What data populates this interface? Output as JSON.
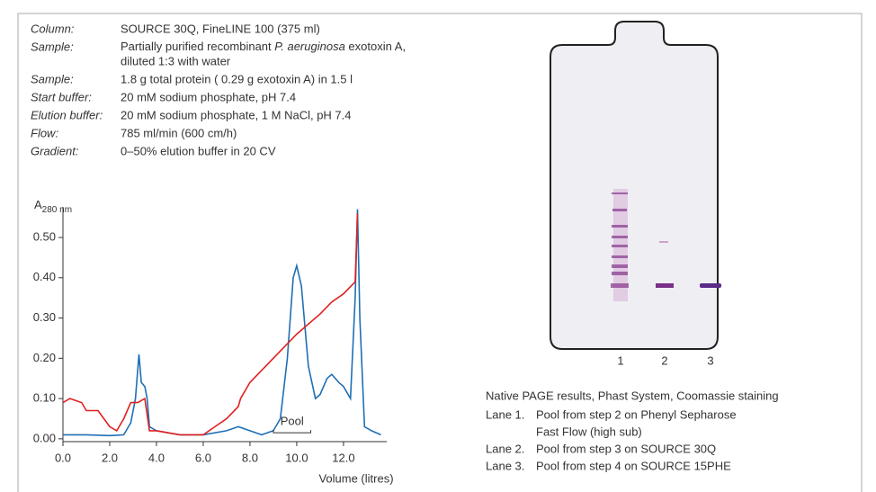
{
  "conditions": [
    {
      "label": "Column:",
      "value": [
        "SOURCE 30Q, FineLINE 100 (375 ml)"
      ]
    },
    {
      "label": "Sample:",
      "value": [
        "Partially purified recombinant ",
        "P. aeruginosa",
        " exotoxin A,",
        "diluted 1:3 with water"
      ]
    },
    {
      "label": "Sample:",
      "value": [
        "1.8 g total protein ( 0.29 g exotoxin A) in 1.5 l"
      ]
    },
    {
      "label": "Start buffer:",
      "value": [
        "20 mM sodium phosphate, pH 7.4"
      ]
    },
    {
      "label": "Elution buffer:",
      "value": [
        "20 mM sodium phosphate, 1 M NaCl, pH 7.4"
      ]
    },
    {
      "label": "Flow:",
      "value": [
        "785 ml/min (600 cm/h)"
      ]
    },
    {
      "label": "Gradient:",
      "value": [
        "0–50% elution buffer in 20 CV"
      ]
    }
  ],
  "chart_data": {
    "type": "line",
    "ylabel": "A",
    "ylabel_sub": "280 nm",
    "xlabel": "Volume (litres)",
    "xlim": [
      0,
      13.85
    ],
    "ylim": [
      -0.007,
      0.576
    ],
    "xticks": [
      {
        "value": 0,
        "label": "0.0"
      },
      {
        "value": 2,
        "label": "2.0"
      },
      {
        "value": 4,
        "label": "4.0"
      },
      {
        "value": 6,
        "label": "6.0"
      },
      {
        "value": 8,
        "label": "8.0"
      },
      {
        "value": 10,
        "label": "10.0"
      },
      {
        "value": 12,
        "label": "12.0"
      }
    ],
    "yticks": [
      {
        "value": 0,
        "label": "0.00"
      },
      {
        "value": 0.1,
        "label": "0.10"
      },
      {
        "value": 0.2,
        "label": "0.20"
      },
      {
        "value": 0.3,
        "label": "0.30"
      },
      {
        "value": 0.4,
        "label": "0.40"
      },
      {
        "value": 0.5,
        "label": "0.50"
      }
    ],
    "series": [
      {
        "color": "#1f6fb5",
        "x": [
          0,
          1.0,
          2.0,
          2.6,
          2.9,
          3.1,
          3.25,
          3.35,
          3.5,
          3.6,
          3.7,
          4.0,
          5.0,
          6.0,
          7.0,
          7.5,
          8.0,
          8.5,
          9.0,
          9.3,
          9.6,
          9.85,
          10.0,
          10.2,
          10.5,
          10.8,
          11.0,
          11.3,
          11.5,
          11.8,
          12.0,
          12.3,
          12.5,
          12.6,
          12.7,
          12.9,
          13.2,
          13.6
        ],
        "values": [
          0.01,
          0.01,
          0.008,
          0.01,
          0.04,
          0.1,
          0.21,
          0.14,
          0.13,
          0.1,
          0.03,
          0.02,
          0.01,
          0.01,
          0.02,
          0.03,
          0.02,
          0.01,
          0.02,
          0.05,
          0.2,
          0.4,
          0.43,
          0.38,
          0.18,
          0.1,
          0.11,
          0.15,
          0.16,
          0.14,
          0.13,
          0.1,
          0.35,
          0.57,
          0.3,
          0.03,
          0.02,
          0.01
        ]
      },
      {
        "color": "#e02020",
        "x": [
          0,
          0.3,
          0.8,
          1.0,
          1.5,
          2.0,
          2.3,
          2.6,
          2.9,
          3.2,
          3.5,
          3.7,
          4.0,
          5.0,
          6.0,
          6.5,
          7.0,
          7.5,
          7.6,
          8.0,
          9.0,
          10.0,
          11.0,
          11.5,
          12.0,
          12.5,
          12.6
        ],
        "values": [
          0.09,
          0.1,
          0.09,
          0.07,
          0.07,
          0.03,
          0.02,
          0.05,
          0.09,
          0.09,
          0.1,
          0.02,
          0.02,
          0.01,
          0.01,
          0.03,
          0.05,
          0.08,
          0.1,
          0.14,
          0.2,
          0.26,
          0.31,
          0.34,
          0.36,
          0.39,
          0.56
        ]
      }
    ],
    "annotations": [
      {
        "text": "Pool",
        "x": [
          9.0,
          10.6
        ],
        "y": 0.015
      }
    ]
  },
  "gel": {
    "lanes": [
      "1",
      "2",
      "3"
    ]
  },
  "caption": {
    "title": "Native PAGE results, Phast System, Coomassie staining",
    "lanes": [
      {
        "label": "Lane 1.",
        "text": [
          "Pool from step 2 on Phenyl Sepharose",
          "Fast Flow (high sub)"
        ]
      },
      {
        "label": "Lane 2.",
        "text": [
          "Pool from step 3 on SOURCE 30Q"
        ]
      },
      {
        "label": "Lane 3.",
        "text": [
          "Pool from step 4 on SOURCE 15PHE"
        ]
      }
    ]
  }
}
